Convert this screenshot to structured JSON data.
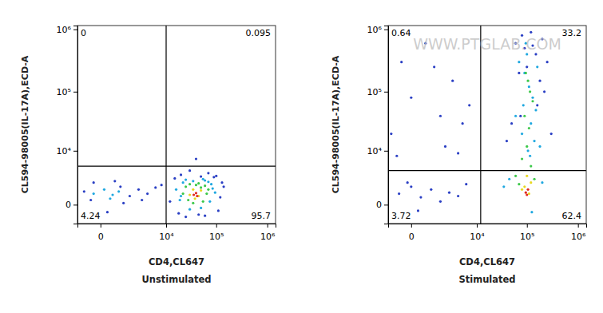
{
  "chart_data": [
    {
      "type": "scatter",
      "log": true,
      "xlabel": "CD4,CL647",
      "ylabel": "CL594-98005(IL-17A),ECD-A",
      "subtitle": "Unstimulated",
      "xlim": [
        -1000,
        1450000
      ],
      "ylim": [
        -1600,
        1150000
      ],
      "xticks": [
        0,
        {
          "value": 10000,
          "label": "10⁴"
        },
        {
          "value": 100000,
          "label": "10⁵"
        },
        {
          "value": 1000000,
          "label": "10⁶"
        }
      ],
      "yticks": [
        0,
        {
          "value": 10000,
          "label": "10⁴"
        },
        {
          "value": 100000,
          "label": "10⁵"
        },
        {
          "value": 1000000,
          "label": "10⁶"
        }
      ],
      "gates": {
        "x": 10000,
        "y": 5000
      },
      "quadrants": {
        "upper_left": 0,
        "upper_right": 0.095,
        "lower_left": 4.24,
        "lower_right": 95.7
      },
      "series": [
        {
          "color": "#2a3fc4",
          "x": [
            -600,
            -300,
            200,
            800,
            1500,
            2500,
            4000,
            6000,
            12000,
            15000,
            18000,
            90000,
            120000,
            140000,
            20000,
            25000,
            110000,
            130000,
            70000,
            40000,
            30000,
            50000,
            -200,
            500,
            1000,
            3000,
            8000,
            60000,
            100000,
            45000
          ],
          "values": [
            1000,
            300,
            -500,
            1500,
            600,
            1200,
            800,
            1400,
            200,
            2600,
            -600,
            2800,
            500,
            1500,
            3200,
            -900,
            -400,
            2000,
            3500,
            7000,
            4000,
            2900,
            2000,
            2200,
            100,
            300,
            1700,
            -800,
            3000,
            -700
          ]
        },
        {
          "color": "#1fa8e0",
          "x": [
            -200,
            100,
            400,
            700,
            300,
            16000,
            19000,
            22000,
            80000,
            95000,
            75000,
            60000,
            25000,
            30000,
            70000,
            50000,
            35000,
            55000,
            85000,
            20000
          ],
          "values": [
            800,
            1200,
            700,
            1000,
            400,
            1200,
            300,
            2000,
            1800,
            900,
            200,
            2300,
            2400,
            -300,
            2100,
            -200,
            2200,
            2500,
            1300,
            600
          ]
        },
        {
          "color": "#3cc84a",
          "x": [
            22000,
            25000,
            28000,
            60000,
            65000,
            55000,
            45000,
            30000,
            50000,
            70000,
            35000,
            40000
          ],
          "values": [
            800,
            1500,
            300,
            1600,
            800,
            200,
            1900,
            1800,
            1400,
            1200,
            100,
            1700
          ]
        },
        {
          "color": "#e8d820",
          "x": [
            30000,
            45000,
            50000,
            35000,
            38000
          ],
          "values": [
            700,
            600,
            1100,
            1200,
            400
          ]
        },
        {
          "color": "#e02a20",
          "x": [
            36000,
            40000,
            42000
          ],
          "values": [
            700,
            850,
            600
          ]
        }
      ]
    },
    {
      "type": "scatter",
      "log": true,
      "xlabel": "CD4,CL647",
      "ylabel": "CL594-98005(IL-17A),ECD-A",
      "subtitle": "Stimulated",
      "annotations": [
        "WWW.PTGLAB.COM"
      ],
      "xlim": [
        -1000,
        1450000
      ],
      "ylim": [
        -1600,
        1150000
      ],
      "xticks": [
        0,
        {
          "value": 10000,
          "label": "10⁴"
        },
        {
          "value": 100000,
          "label": "10⁵"
        },
        {
          "value": 1000000,
          "label": "10⁶"
        }
      ],
      "yticks": [
        0,
        {
          "value": 10000,
          "label": "10⁴"
        },
        {
          "value": 100000,
          "label": "10⁵"
        },
        {
          "value": 1000000,
          "label": "10⁶"
        }
      ],
      "gates": {
        "x": 12000,
        "y": 4000
      },
      "quadrants": {
        "upper_left": 0.64,
        "upper_right": 33.2,
        "lower_left": 3.72,
        "lower_right": 62.4
      },
      "series": [
        {
          "color": "#2a3fc4",
          "x": [
            -800,
            -300,
            0,
            500,
            1500,
            3000,
            5000,
            2000,
            -500,
            1000,
            4000,
            7000,
            -400,
            0,
            300,
            800,
            1500,
            2500,
            200,
            -100,
            4000,
            6000,
            60000,
            80000,
            150000,
            200000,
            250000,
            70000,
            120000,
            180000,
            90000,
            220000,
            100000,
            160000,
            50000,
            130000,
            75000,
            300000,
            40000
          ],
          "values": [
            20000,
            300000,
            80000,
            600000,
            40000,
            150000,
            30000,
            12000,
            8000,
            250000,
            9000,
            60000,
            800,
            1500,
            500,
            1200,
            200,
            900,
            -400,
            2000,
            600,
            1800,
            600000,
            800000,
            400000,
            700000,
            300000,
            200000,
            900000,
            150000,
            500000,
            100000,
            250000,
            60000,
            30000,
            550000,
            40000,
            20000,
            15000
          ]
        },
        {
          "color": "#1fa8e0",
          "x": [
            70000,
            90000,
            110000,
            130000,
            150000,
            100000,
            120000,
            80000,
            140000,
            95000,
            105000,
            85000,
            115000,
            160000,
            60000,
            180000,
            45000,
            35000,
            200000,
            125000
          ],
          "values": [
            300000,
            200000,
            120000,
            80000,
            50000,
            400000,
            30000,
            20000,
            15000,
            600000,
            10000,
            60000,
            8000,
            250000,
            40000,
            12000,
            2500,
            1500,
            2000,
            -500
          ]
        },
        {
          "color": "#3cc84a",
          "x": [
            90000,
            110000,
            100000,
            130000,
            80000,
            120000,
            105000,
            70000,
            140000,
            60000,
            95000,
            115000
          ],
          "values": [
            40000,
            25000,
            12000,
            70000,
            7000,
            5000,
            150000,
            1800,
            2500,
            3000,
            200000,
            100000
          ]
        },
        {
          "color": "#e8d820",
          "x": [
            90000,
            110000,
            100000,
            80000,
            120000
          ],
          "values": [
            1500,
            800,
            3000,
            1200,
            2000
          ]
        },
        {
          "color": "#e02a20",
          "x": [
            95000,
            105000,
            100000
          ],
          "values": [
            900,
            1200,
            700
          ]
        }
      ]
    }
  ]
}
